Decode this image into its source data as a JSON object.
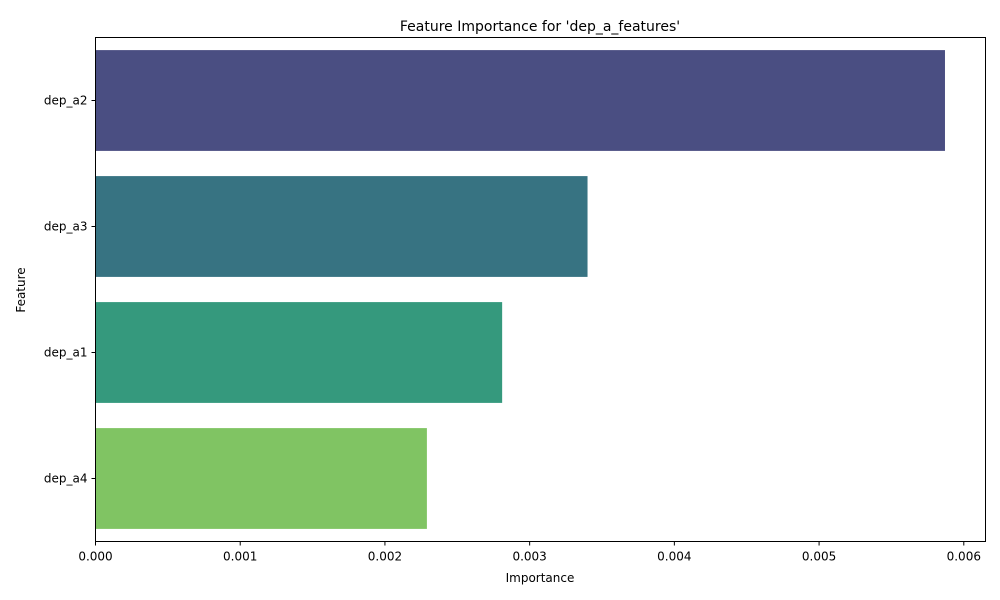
{
  "chart_data": {
    "type": "bar",
    "orientation": "horizontal",
    "title": "Feature Importance for 'dep_a_features'",
    "xlabel": "Importance",
    "ylabel": "Feature",
    "categories": [
      "dep_a2",
      "dep_a3",
      "dep_a1",
      "dep_a4"
    ],
    "values": [
      0.00587,
      0.0034,
      0.00281,
      0.00229
    ],
    "colors": [
      "#4a4e82",
      "#377382",
      "#35997d",
      "#80c463"
    ],
    "xlim": [
      0,
      0.00615
    ],
    "xticks": [
      0,
      0.001,
      0.002,
      0.003,
      0.004,
      0.005,
      0.006
    ],
    "xtick_labels": [
      "0.000",
      "0.001",
      "0.002",
      "0.003",
      "0.004",
      "0.005",
      "0.006"
    ],
    "grid": false,
    "legend": "none"
  }
}
